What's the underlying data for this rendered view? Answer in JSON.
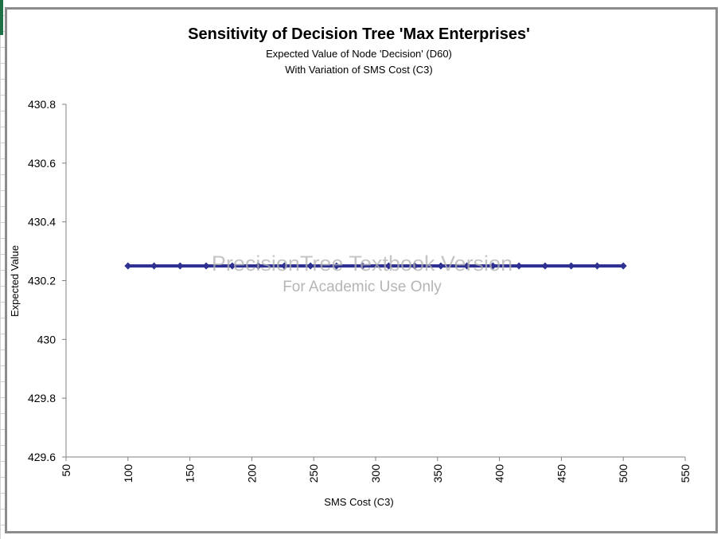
{
  "chart_data": {
    "type": "line",
    "title": "Sensitivity of Decision Tree 'Max Enterprises'",
    "subtitle_lines": [
      "Expected Value of Node 'Decision' (D60)",
      "With Variation of SMS Cost (C3)"
    ],
    "xlabel": "SMS Cost (C3)",
    "ylabel": "Expected Value",
    "xlim": [
      50,
      550
    ],
    "ylim": [
      429.6,
      430.8
    ],
    "x_ticks": [
      "50",
      "100",
      "150",
      "200",
      "250",
      "300",
      "350",
      "400",
      "450",
      "500",
      "550"
    ],
    "y_ticks": [
      "429.6",
      "429.8",
      "430",
      "430.2",
      "430.4",
      "430.6",
      "430.8"
    ],
    "grid": false,
    "legend": "none",
    "series": [
      {
        "color": "#2e3192",
        "marker": "diamond",
        "x": [
          100,
          121.05,
          142.11,
          163.16,
          184.21,
          205.26,
          226.32,
          247.37,
          268.42,
          289.47,
          310.53,
          331.58,
          352.63,
          373.68,
          394.74,
          415.79,
          436.84,
          457.89,
          478.95,
          500
        ],
        "y": [
          430.25,
          430.25,
          430.25,
          430.25,
          430.25,
          430.25,
          430.25,
          430.25,
          430.25,
          430.25,
          430.25,
          430.25,
          430.25,
          430.25,
          430.25,
          430.25,
          430.25,
          430.25,
          430.25,
          430.25
        ]
      }
    ],
    "watermark": [
      "PrecisionTree Textbook Version",
      "For Academic Use Only"
    ]
  },
  "colors": {
    "series": "#2e3192",
    "frame": "#8c8c8c",
    "sheet_marker": "#1e7145"
  }
}
